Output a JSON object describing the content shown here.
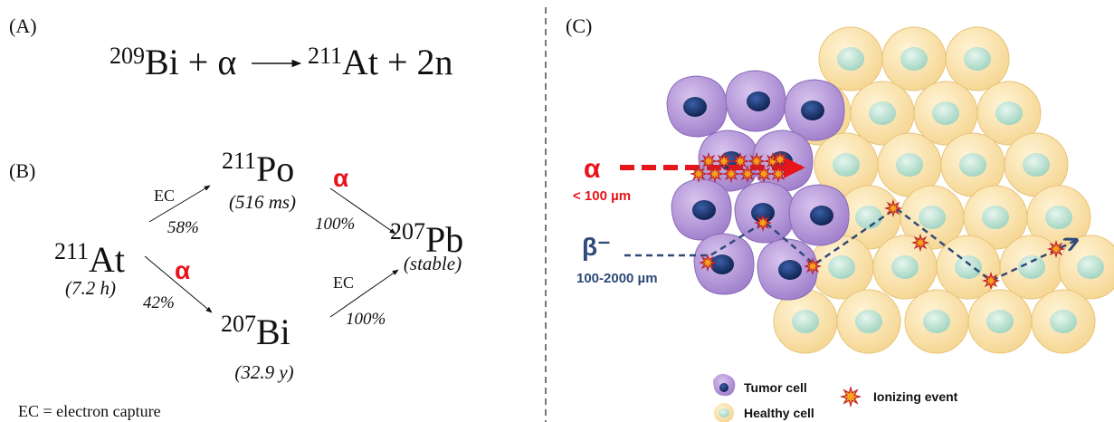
{
  "panel_a": {
    "label": "(A)",
    "equation": {
      "reactant_mass": "209",
      "reactants": "Bi + α",
      "product_mass": "211",
      "products": "At + 2n"
    }
  },
  "panel_b": {
    "label": "(B)",
    "nodes": [
      {
        "mass": "211",
        "symbol": "At",
        "half_life": "(7.2 h)"
      },
      {
        "mass": "211",
        "symbol": "Po",
        "half_life": "(516 ms)"
      },
      {
        "mass": "207",
        "symbol": "Bi",
        "half_life": "(32.9 y)"
      },
      {
        "mass": "207",
        "symbol": "Pb",
        "half_life": "(stable)"
      }
    ],
    "edges": [
      {
        "mode": "EC",
        "fraction": "58%"
      },
      {
        "mode": "α",
        "fraction": "42%"
      },
      {
        "mode": "α",
        "fraction": "100%"
      },
      {
        "mode": "EC",
        "fraction": "100%"
      }
    ],
    "footnote": "EC = electron capture"
  },
  "panel_c": {
    "label": "(C)",
    "alpha": {
      "symbol": "α",
      "range": "< 100 µm"
    },
    "beta": {
      "symbol": "β⁻",
      "range": "100-2000 µm"
    },
    "legend": [
      "Tumor cell",
      "Healthy cell",
      "Ionizing event"
    ]
  }
}
